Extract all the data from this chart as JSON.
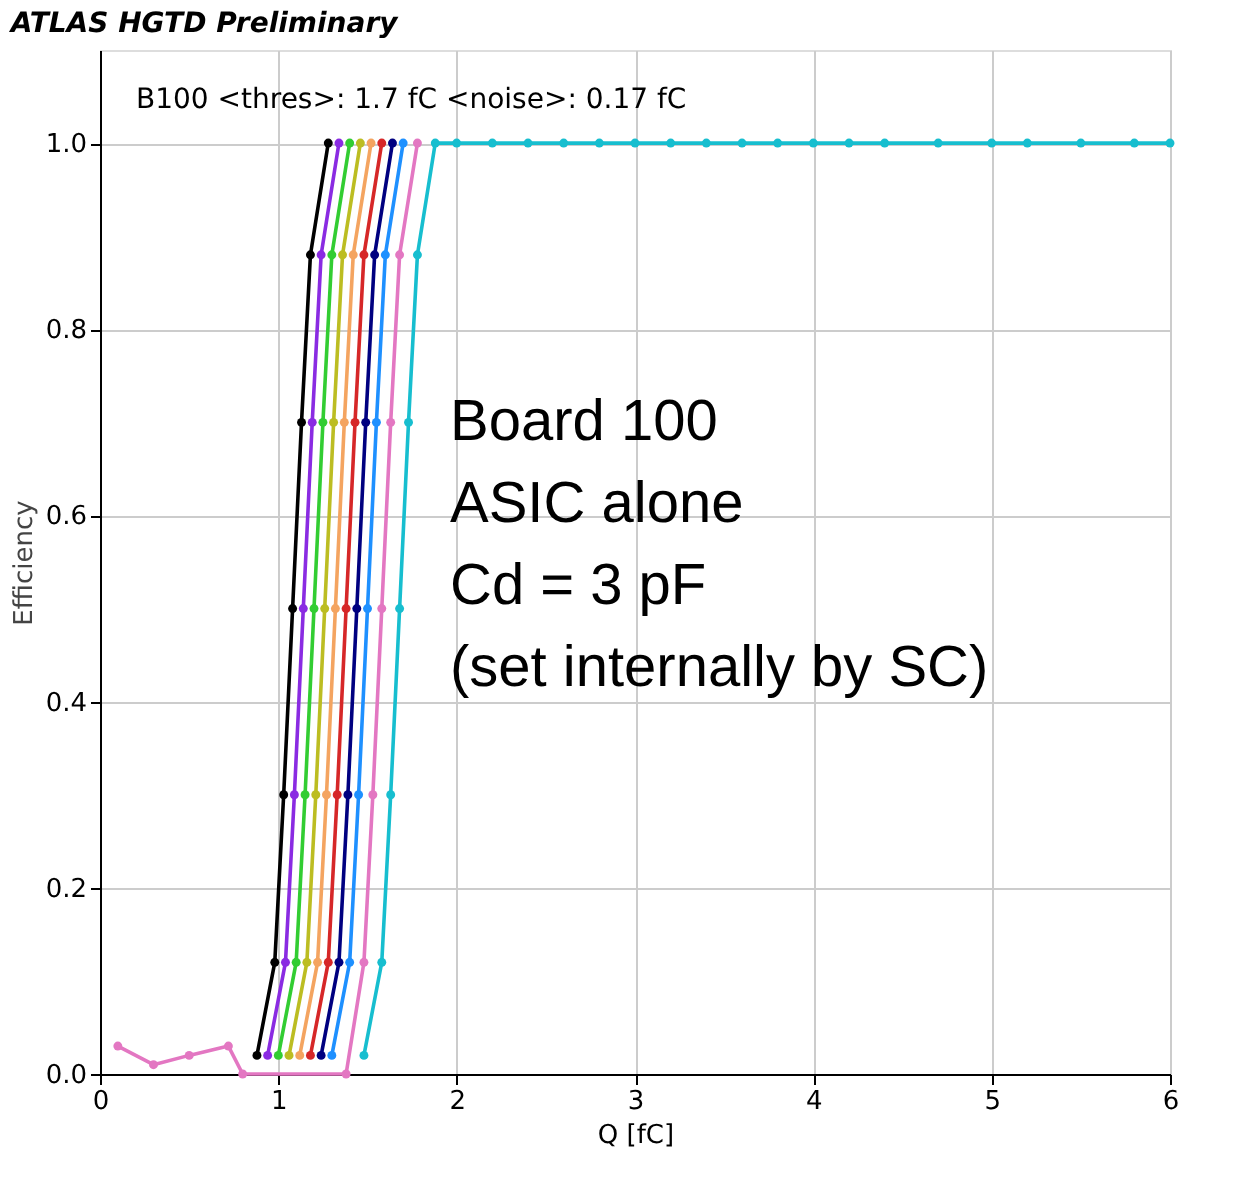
{
  "chart_data": {
    "type": "line",
    "title": "ATLAS HGTD Preliminary",
    "xlabel": "Q [fC]",
    "ylabel": "Efficiency",
    "xlim": [
      0,
      6
    ],
    "ylim": [
      0,
      1.1
    ],
    "xticks": [
      0,
      1,
      2,
      3,
      4,
      5,
      6
    ],
    "yticks": [
      {
        "value": 0,
        "label": "0.0"
      },
      {
        "value": 0.2,
        "label": "0.2"
      },
      {
        "value": 0.4,
        "label": "0.4"
      },
      {
        "value": 0.6,
        "label": "0.6"
      },
      {
        "value": 0.8,
        "label": "0.8"
      },
      {
        "value": 1,
        "label": "1.0"
      }
    ],
    "grid": true,
    "legend": false,
    "marker": "circle",
    "line_style": "solid",
    "annotations": [
      "B100    <thres>: 1.7 fC    <noise>: 0.17 fC",
      "Board 100\nASIC alone\nCd = 3 pF\n(set internally by SC)"
    ],
    "series": [
      {
        "color": "#17becf",
        "x": [
          1.48,
          1.58,
          1.63,
          1.68,
          1.73,
          1.78,
          1.88,
          2.0,
          2.2,
          2.4,
          2.6,
          2.8,
          3.0,
          3.2,
          3.4,
          3.6,
          3.8,
          4.0,
          4.2,
          4.4,
          4.7,
          5.0,
          5.2,
          5.5,
          5.8,
          6.0
        ],
        "values": [
          0.02,
          0.12,
          0.3,
          0.5,
          0.7,
          0.88,
          1,
          1,
          1,
          1,
          1,
          1,
          1,
          1,
          1,
          1,
          1,
          1,
          1,
          1,
          1,
          1,
          1,
          1,
          1,
          1
        ]
      },
      {
        "color": "#000000",
        "x": [
          0.88,
          0.98,
          1.03,
          1.08,
          1.13,
          1.18,
          1.28
        ],
        "values": [
          0.02,
          0.12,
          0.3,
          0.5,
          0.7,
          0.88,
          1
        ]
      },
      {
        "color": "#8a2be2",
        "x": [
          0.94,
          1.04,
          1.09,
          1.14,
          1.19,
          1.24,
          1.34
        ],
        "values": [
          0.02,
          0.12,
          0.3,
          0.5,
          0.7,
          0.88,
          1
        ]
      },
      {
        "color": "#32cd32",
        "x": [
          1.0,
          1.1,
          1.15,
          1.2,
          1.25,
          1.3,
          1.4
        ],
        "values": [
          0.02,
          0.12,
          0.3,
          0.5,
          0.7,
          0.88,
          1
        ]
      },
      {
        "color": "#bcbd22",
        "x": [
          1.06,
          1.16,
          1.21,
          1.26,
          1.31,
          1.36,
          1.46
        ],
        "values": [
          0.02,
          0.12,
          0.3,
          0.5,
          0.7,
          0.88,
          1
        ]
      },
      {
        "color": "#f4a460",
        "x": [
          1.12,
          1.22,
          1.27,
          1.32,
          1.37,
          1.42,
          1.52
        ],
        "values": [
          0.02,
          0.12,
          0.3,
          0.5,
          0.7,
          0.88,
          1
        ]
      },
      {
        "color": "#d62728",
        "x": [
          1.18,
          1.28,
          1.33,
          1.38,
          1.43,
          1.48,
          1.58
        ],
        "values": [
          0.02,
          0.12,
          0.3,
          0.5,
          0.7,
          0.88,
          1
        ]
      },
      {
        "color": "#000080",
        "x": [
          1.24,
          1.34,
          1.39,
          1.44,
          1.49,
          1.54,
          1.64
        ],
        "values": [
          0.02,
          0.12,
          0.3,
          0.5,
          0.7,
          0.88,
          1
        ]
      },
      {
        "color": "#1e90ff",
        "x": [
          1.3,
          1.4,
          1.45,
          1.5,
          1.55,
          1.6,
          1.7
        ],
        "values": [
          0.02,
          0.12,
          0.3,
          0.5,
          0.7,
          0.88,
          1
        ]
      },
      {
        "color": "#e377c2",
        "x": [
          0.1,
          0.3,
          0.5,
          0.72,
          0.8,
          1.38,
          1.48,
          1.53,
          1.58,
          1.63,
          1.68,
          1.78
        ],
        "values": [
          0.03,
          0.01,
          0.02,
          0.03,
          0,
          0,
          0.12,
          0.3,
          0.5,
          0.7,
          0.88,
          1
        ]
      }
    ]
  }
}
